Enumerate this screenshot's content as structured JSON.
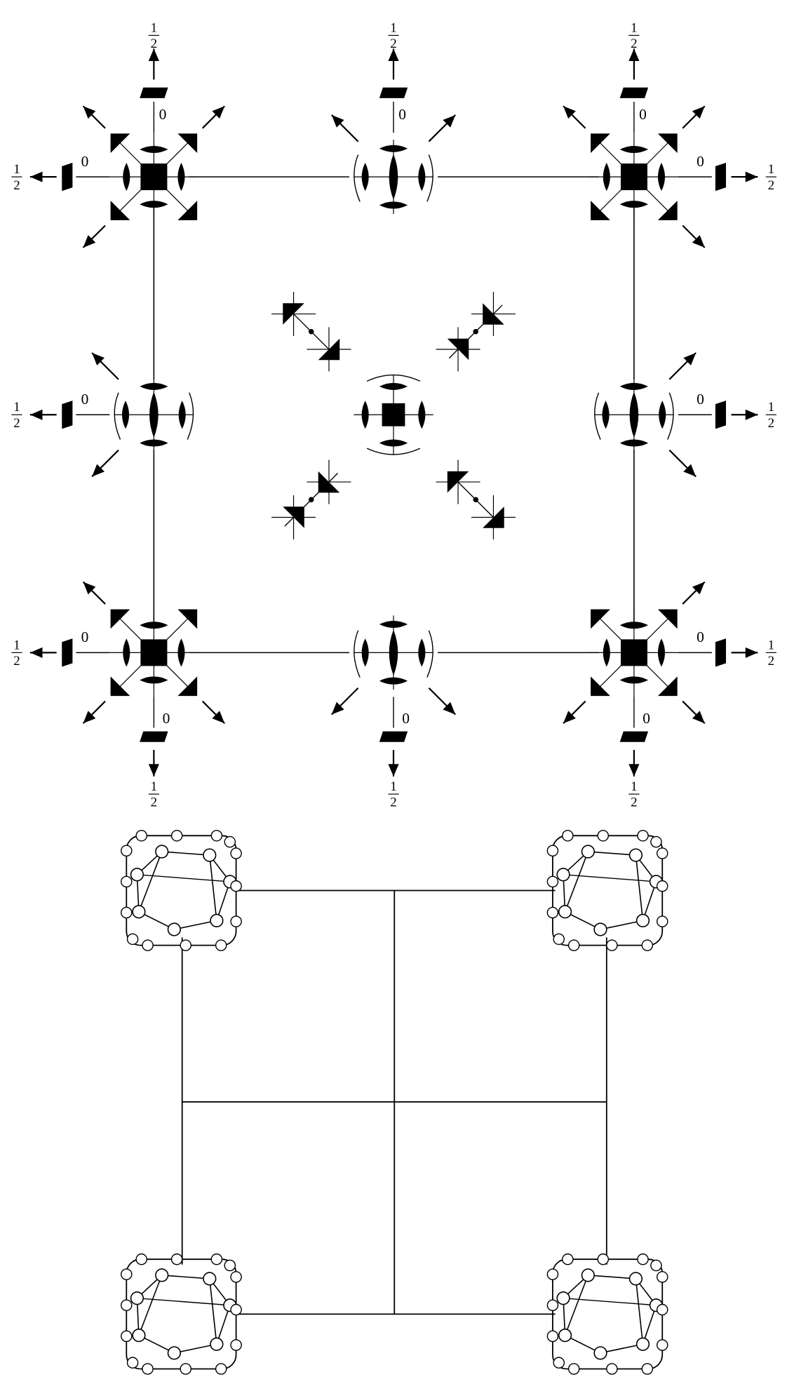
{
  "labels": {
    "zero": "0",
    "half_num": "1",
    "half_den": "2"
  },
  "colors": {
    "ink": "#000000",
    "paper": "#ffffff"
  },
  "upper_diagram": {
    "corner_sites": [
      "top-left",
      "top-right",
      "bottom-left",
      "bottom-right"
    ],
    "edge_sites": [
      "top-middle",
      "left-middle",
      "right-middle",
      "bottom-middle"
    ],
    "center_site": "center",
    "off_axis_sites": [
      "upper-left",
      "upper-right",
      "lower-left",
      "lower-right"
    ],
    "height_labels": [
      {
        "site": "top-left",
        "direction": "up",
        "near": "0",
        "far": "1/2"
      },
      {
        "site": "top-left",
        "direction": "left",
        "near": "0",
        "far": "1/2"
      },
      {
        "site": "top-middle",
        "direction": "up",
        "near": "0",
        "far": "1/2"
      },
      {
        "site": "top-right",
        "direction": "up",
        "near": "0",
        "far": "1/2"
      },
      {
        "site": "top-right",
        "direction": "right",
        "near": "0",
        "far": "1/2"
      },
      {
        "site": "left-middle",
        "direction": "left",
        "near": "0",
        "far": "1/2"
      },
      {
        "site": "right-middle",
        "direction": "right",
        "near": "0",
        "far": "1/2"
      },
      {
        "site": "bottom-left",
        "direction": "left",
        "near": "0",
        "far": "1/2"
      },
      {
        "site": "bottom-left",
        "direction": "down",
        "near": "0",
        "far": "1/2"
      },
      {
        "site": "bottom-middle",
        "direction": "down",
        "near": "0",
        "far": "1/2"
      },
      {
        "site": "bottom-right",
        "direction": "down",
        "near": "0",
        "far": "1/2"
      },
      {
        "site": "bottom-right",
        "direction": "right",
        "near": "0",
        "far": "1/2"
      }
    ]
  },
  "lower_diagram": {
    "polyhedra": [
      "top-left",
      "top-right",
      "bottom-left",
      "bottom-right"
    ]
  }
}
